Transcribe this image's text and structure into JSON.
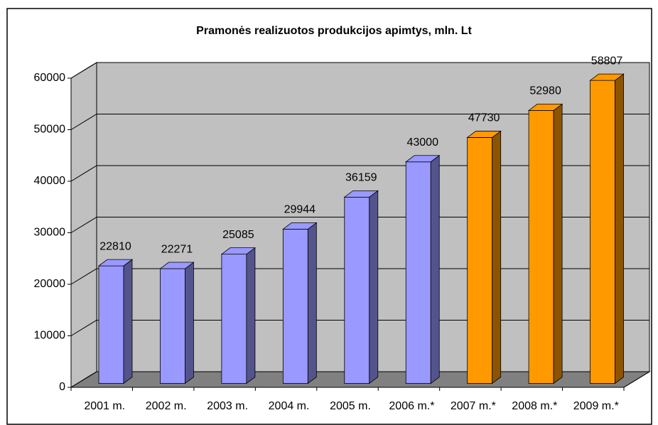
{
  "chart_data": {
    "type": "bar3d",
    "title": "Pramonės realizuotos produkcijos apimtys, mln. Lt",
    "categories": [
      "2001 m.",
      "2002 m.",
      "2003 m.",
      "2004 m.",
      "2005 m.",
      "2006 m.*",
      "2007 m.*",
      "2008 m.*",
      "2009 m.*"
    ],
    "values": [
      22810,
      22271,
      25085,
      29944,
      36159,
      43000,
      47730,
      52980,
      58807
    ],
    "colors": [
      "#9999ff",
      "#9999ff",
      "#9999ff",
      "#9999ff",
      "#9999ff",
      "#9999ff",
      "#ff9900",
      "#ff9900",
      "#ff9900"
    ],
    "ylim": [
      0,
      60000
    ],
    "yticks": [
      0,
      10000,
      20000,
      30000,
      40000,
      50000,
      60000
    ],
    "grid": true
  }
}
